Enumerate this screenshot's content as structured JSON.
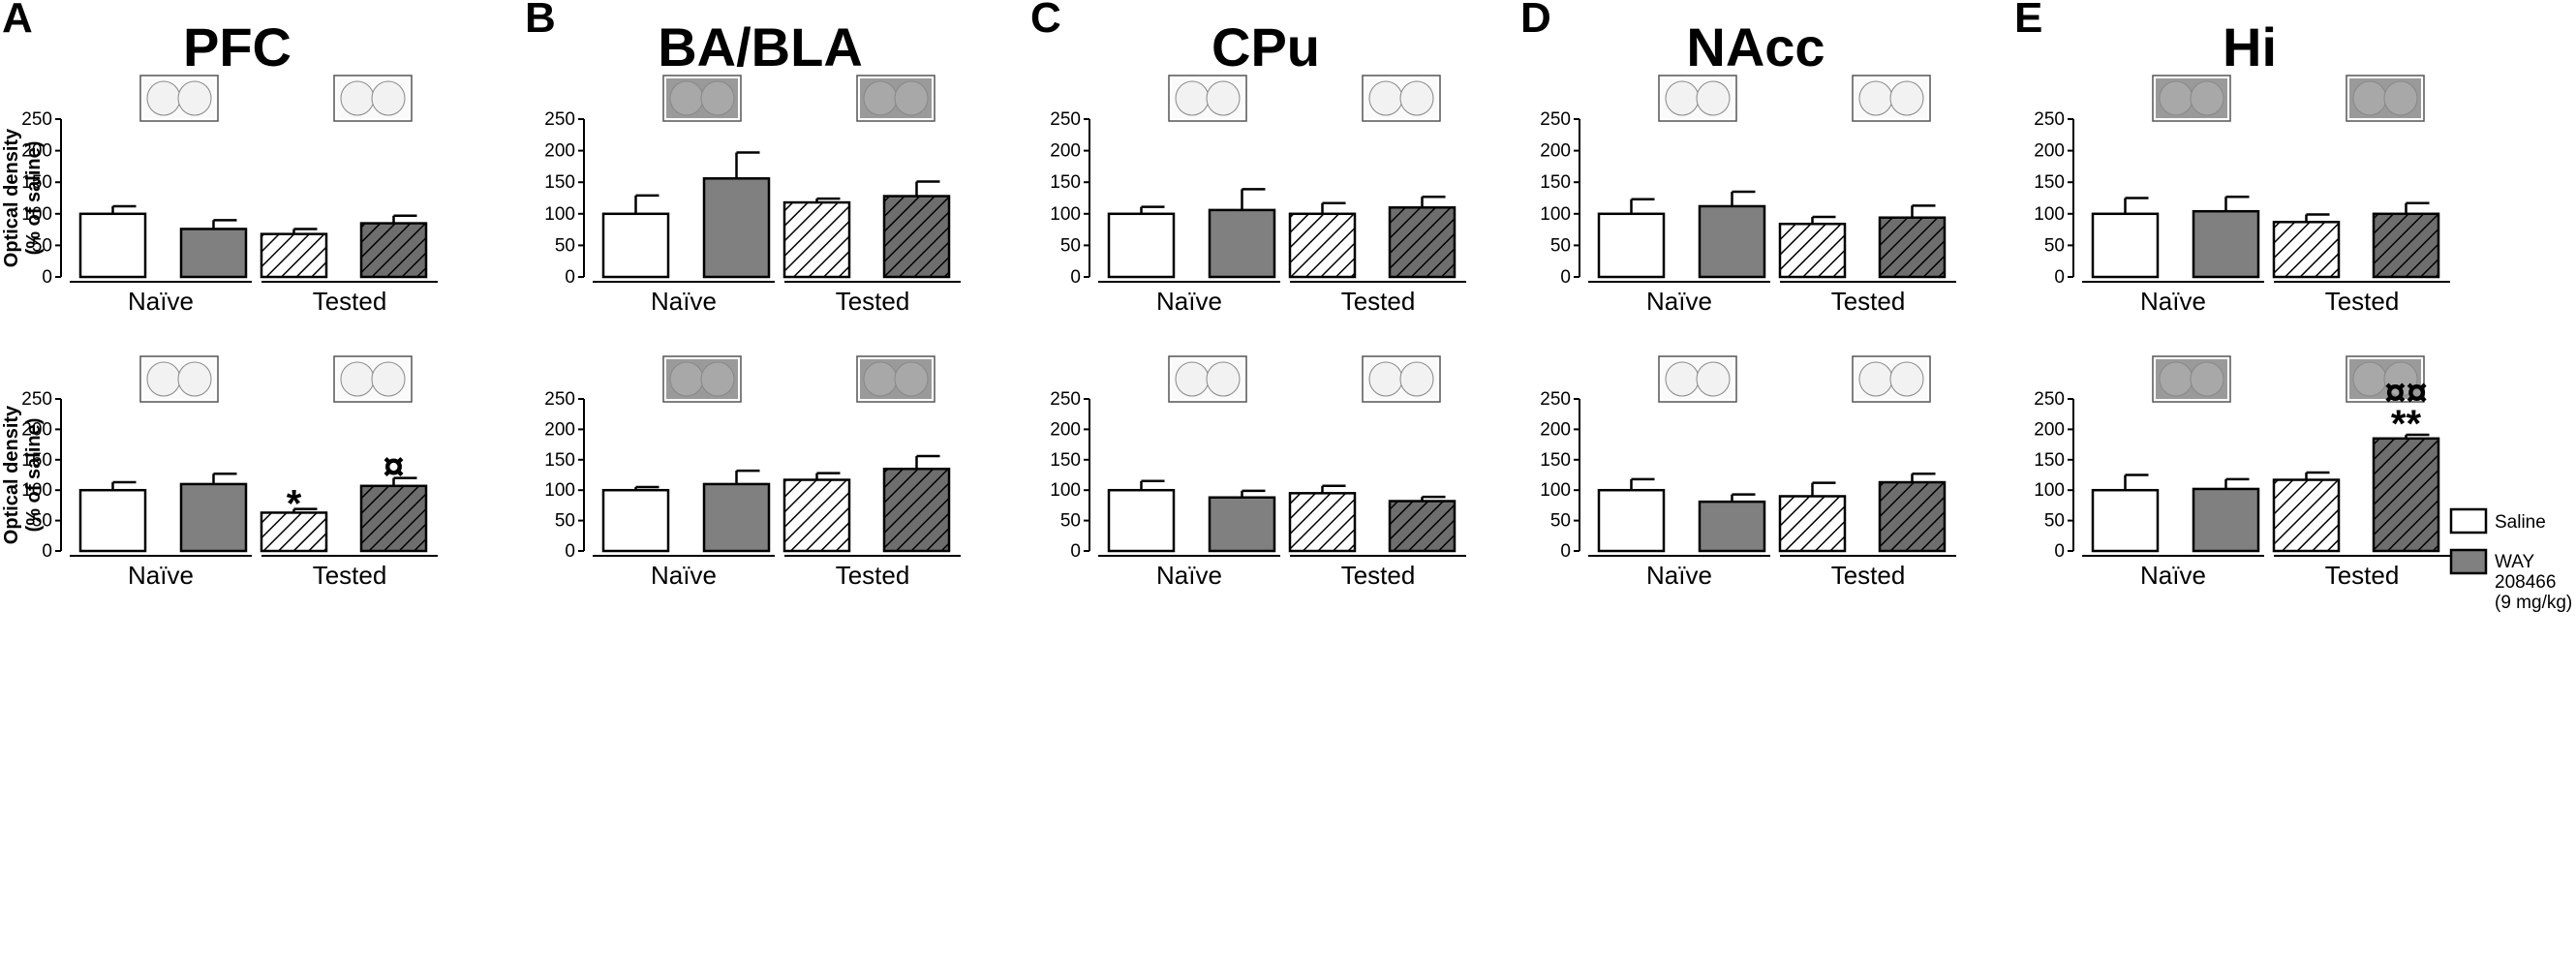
{
  "colors": {
    "saline_fill": "#ffffff",
    "way_fill": "#808080",
    "hatch_way_bg": "#6e6e6e",
    "line": "#000000",
    "thumb_light": "#f2f2f2",
    "thumb_dark": "#a8a8a8"
  },
  "legend": {
    "saline": "Saline",
    "way": [
      "WAY",
      "208466",
      "(9 mg/kg)"
    ]
  },
  "chart_data": [
    {
      "type": "bar",
      "panel": "A",
      "title": "PFC",
      "row": "top",
      "ylabel": [
        "Optical density",
        "(% of saline)"
      ],
      "ylim": [
        0,
        250
      ],
      "yticks": [
        "0",
        "50",
        "100",
        "150",
        "200",
        "250"
      ],
      "groups": [
        "Naïve",
        "Tested"
      ],
      "series": [
        {
          "name": "Naïve Saline",
          "value": 100,
          "error": 12,
          "sig": ""
        },
        {
          "name": "Naïve WAY 208466",
          "value": 76,
          "error": 14,
          "sig": ""
        },
        {
          "name": "Tested Saline",
          "value": 68,
          "error": 8,
          "sig": ""
        },
        {
          "name": "Tested WAY 208466",
          "value": 85,
          "error": 12,
          "sig": ""
        }
      ]
    },
    {
      "type": "bar",
      "panel": "B",
      "title": "BA/BLA",
      "row": "top",
      "ylabel": [],
      "ylim": [
        0,
        250
      ],
      "yticks": [
        "0",
        "50",
        "100",
        "150",
        "200",
        "250"
      ],
      "groups": [
        "Naïve",
        "Tested"
      ],
      "series": [
        {
          "name": "Naïve Saline",
          "value": 100,
          "error": 29,
          "sig": ""
        },
        {
          "name": "Naïve WAY 208466",
          "value": 156,
          "error": 41,
          "sig": ""
        },
        {
          "name": "Tested Saline",
          "value": 118,
          "error": 6,
          "sig": ""
        },
        {
          "name": "Tested WAY 208466",
          "value": 128,
          "error": 23,
          "sig": ""
        }
      ]
    },
    {
      "type": "bar",
      "panel": "C",
      "title": "CPu",
      "row": "top",
      "ylabel": [],
      "ylim": [
        0,
        250
      ],
      "yticks": [
        "0",
        "50",
        "100",
        "150",
        "200",
        "250"
      ],
      "groups": [
        "Naïve",
        "Tested"
      ],
      "series": [
        {
          "name": "Naïve Saline",
          "value": 100,
          "error": 11,
          "sig": ""
        },
        {
          "name": "Naïve WAY 208466",
          "value": 106,
          "error": 33,
          "sig": ""
        },
        {
          "name": "Tested Saline",
          "value": 100,
          "error": 17,
          "sig": ""
        },
        {
          "name": "Tested WAY 208466",
          "value": 110,
          "error": 17,
          "sig": ""
        }
      ]
    },
    {
      "type": "bar",
      "panel": "D",
      "title": "NAcc",
      "row": "top",
      "ylabel": [],
      "ylim": [
        0,
        250
      ],
      "yticks": [
        "0",
        "50",
        "100",
        "150",
        "200",
        "250"
      ],
      "groups": [
        "Naïve",
        "Tested"
      ],
      "series": [
        {
          "name": "Naïve Saline",
          "value": 100,
          "error": 23,
          "sig": ""
        },
        {
          "name": "Naïve WAY 208466",
          "value": 112,
          "error": 23,
          "sig": ""
        },
        {
          "name": "Tested Saline",
          "value": 84,
          "error": 11,
          "sig": ""
        },
        {
          "name": "Tested WAY 208466",
          "value": 94,
          "error": 19,
          "sig": ""
        }
      ]
    },
    {
      "type": "bar",
      "panel": "E",
      "title": "Hi",
      "row": "top",
      "ylabel": [],
      "ylim": [
        0,
        250
      ],
      "yticks": [
        "0",
        "50",
        "100",
        "150",
        "200",
        "250"
      ],
      "groups": [
        "Naïve",
        "Tested"
      ],
      "series": [
        {
          "name": "Naïve Saline",
          "value": 100,
          "error": 25,
          "sig": ""
        },
        {
          "name": "Naïve WAY 208466",
          "value": 104,
          "error": 23,
          "sig": ""
        },
        {
          "name": "Tested Saline",
          "value": 87,
          "error": 12,
          "sig": ""
        },
        {
          "name": "Tested WAY 208466",
          "value": 100,
          "error": 17,
          "sig": ""
        }
      ]
    },
    {
      "type": "bar",
      "panel": "A",
      "title": "PFC",
      "row": "bottom",
      "ylabel": [
        "Optical density",
        "(% of saline)"
      ],
      "ylim": [
        0,
        250
      ],
      "yticks": [
        "0",
        "50",
        "100",
        "150",
        "200",
        "250"
      ],
      "groups": [
        "Naïve",
        "Tested"
      ],
      "series": [
        {
          "name": "Naïve Saline",
          "value": 100,
          "error": 13,
          "sig": ""
        },
        {
          "name": "Naïve WAY 208466",
          "value": 110,
          "error": 17,
          "sig": ""
        },
        {
          "name": "Tested Saline",
          "value": 63,
          "error": 6,
          "sig": "*"
        },
        {
          "name": "Tested WAY 208466",
          "value": 107,
          "error": 13,
          "sig": "¤"
        }
      ]
    },
    {
      "type": "bar",
      "panel": "B",
      "title": "BA/BLA",
      "row": "bottom",
      "ylabel": [],
      "ylim": [
        0,
        250
      ],
      "yticks": [
        "0",
        "50",
        "100",
        "150",
        "200",
        "250"
      ],
      "groups": [
        "Naïve",
        "Tested"
      ],
      "series": [
        {
          "name": "Naïve Saline",
          "value": 100,
          "error": 5,
          "sig": ""
        },
        {
          "name": "Naïve WAY 208466",
          "value": 110,
          "error": 22,
          "sig": ""
        },
        {
          "name": "Tested Saline",
          "value": 117,
          "error": 11,
          "sig": ""
        },
        {
          "name": "Tested WAY 208466",
          "value": 135,
          "error": 21,
          "sig": ""
        }
      ]
    },
    {
      "type": "bar",
      "panel": "C",
      "title": "CPu",
      "row": "bottom",
      "ylabel": [],
      "ylim": [
        0,
        250
      ],
      "yticks": [
        "0",
        "50",
        "100",
        "150",
        "200",
        "250"
      ],
      "groups": [
        "Naïve",
        "Tested"
      ],
      "series": [
        {
          "name": "Naïve Saline",
          "value": 100,
          "error": 15,
          "sig": ""
        },
        {
          "name": "Naïve WAY 208466",
          "value": 88,
          "error": 11,
          "sig": ""
        },
        {
          "name": "Tested Saline",
          "value": 95,
          "error": 12,
          "sig": ""
        },
        {
          "name": "Tested WAY 208466",
          "value": 82,
          "error": 7,
          "sig": ""
        }
      ]
    },
    {
      "type": "bar",
      "panel": "D",
      "title": "NAcc",
      "row": "bottom",
      "ylabel": [],
      "ylim": [
        0,
        250
      ],
      "yticks": [
        "0",
        "50",
        "100",
        "150",
        "200",
        "250"
      ],
      "groups": [
        "Naïve",
        "Tested"
      ],
      "series": [
        {
          "name": "Naïve Saline",
          "value": 100,
          "error": 18,
          "sig": ""
        },
        {
          "name": "Naïve WAY 208466",
          "value": 81,
          "error": 12,
          "sig": ""
        },
        {
          "name": "Tested Saline",
          "value": 90,
          "error": 22,
          "sig": ""
        },
        {
          "name": "Tested WAY 208466",
          "value": 113,
          "error": 14,
          "sig": ""
        }
      ]
    },
    {
      "type": "bar",
      "panel": "E",
      "title": "Hi",
      "row": "bottom",
      "ylabel": [],
      "ylim": [
        0,
        250
      ],
      "yticks": [
        "0",
        "50",
        "100",
        "150",
        "200",
        "250"
      ],
      "groups": [
        "Naïve",
        "Tested"
      ],
      "series": [
        {
          "name": "Naïve Saline",
          "value": 100,
          "error": 25,
          "sig": ""
        },
        {
          "name": "Naïve WAY 208466",
          "value": 102,
          "error": 16,
          "sig": ""
        },
        {
          "name": "Tested Saline",
          "value": 117,
          "error": 12,
          "sig": ""
        },
        {
          "name": "Tested WAY 208466",
          "value": 185,
          "error": 6,
          "sig": "**",
          "sig2": "¤¤"
        }
      ]
    }
  ]
}
